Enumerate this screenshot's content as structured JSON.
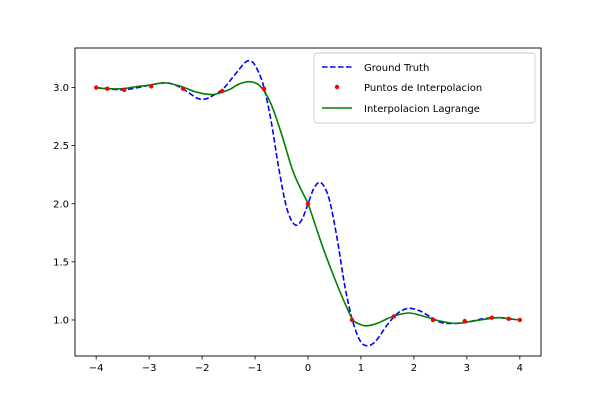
{
  "chart_data": {
    "type": "line",
    "title": "",
    "xlabel": "",
    "ylabel": "",
    "xlim": [
      -4.4,
      4.4
    ],
    "ylim": [
      0.69,
      3.34
    ],
    "grid": false,
    "legend_placement": "top-right",
    "x_ticks": [
      -4,
      -3,
      -2,
      -1,
      0,
      1,
      2,
      3,
      4
    ],
    "x_tick_labels": [
      "−4",
      "−3",
      "−2",
      "−1",
      "0",
      "1",
      "2",
      "3",
      "4"
    ],
    "y_ticks": [
      1.0,
      1.5,
      2.0,
      2.5,
      3.0
    ],
    "y_tick_labels": [
      "1.0",
      "1.5",
      "2.0",
      "2.5",
      "3.0"
    ],
    "series": [
      {
        "name": "Ground Truth",
        "style": "dashed",
        "color": "#0000ff",
        "points": [
          [
            -4.0,
            3.0
          ],
          [
            -3.8,
            2.99
          ],
          [
            -3.5,
            2.98
          ],
          [
            -3.2,
            3.0
          ],
          [
            -3.0,
            3.02
          ],
          [
            -2.7,
            3.04
          ],
          [
            -2.5,
            3.02
          ],
          [
            -2.3,
            2.97
          ],
          [
            -2.1,
            2.91
          ],
          [
            -1.95,
            2.9
          ],
          [
            -1.8,
            2.93
          ],
          [
            -1.6,
            2.99
          ],
          [
            -1.4,
            3.1
          ],
          [
            -1.2,
            3.21
          ],
          [
            -1.1,
            3.23
          ],
          [
            -1.0,
            3.19
          ],
          [
            -0.85,
            3.03
          ],
          [
            -0.7,
            2.72
          ],
          [
            -0.55,
            2.3
          ],
          [
            -0.4,
            1.96
          ],
          [
            -0.25,
            1.82
          ],
          [
            -0.12,
            1.86
          ],
          [
            0.0,
            2.0
          ],
          [
            0.12,
            2.14
          ],
          [
            0.25,
            2.18
          ],
          [
            0.4,
            2.04
          ],
          [
            0.55,
            1.7
          ],
          [
            0.7,
            1.28
          ],
          [
            0.85,
            0.98
          ],
          [
            1.0,
            0.81
          ],
          [
            1.15,
            0.78
          ],
          [
            1.3,
            0.83
          ],
          [
            1.5,
            0.96
          ],
          [
            1.7,
            1.06
          ],
          [
            1.9,
            1.1
          ],
          [
            2.1,
            1.08
          ],
          [
            2.3,
            1.03
          ],
          [
            2.5,
            0.98
          ],
          [
            2.7,
            0.97
          ],
          [
            3.0,
            0.98
          ],
          [
            3.3,
            1.01
          ],
          [
            3.6,
            1.02
          ],
          [
            3.8,
            1.01
          ],
          [
            4.0,
            1.0
          ]
        ]
      },
      {
        "name": "Puntos de Interpolacion",
        "style": "markers",
        "color": "#ff0000",
        "points": [
          [
            -4.0,
            3.0
          ],
          [
            -3.79,
            2.99
          ],
          [
            -3.47,
            2.98
          ],
          [
            -2.96,
            3.01
          ],
          [
            -2.36,
            2.99
          ],
          [
            -1.62,
            2.97
          ],
          [
            -0.83,
            2.99
          ],
          [
            0.0,
            2.0
          ],
          [
            0.83,
            1.0
          ],
          [
            1.62,
            1.03
          ],
          [
            2.36,
            1.0
          ],
          [
            2.96,
            0.99
          ],
          [
            3.47,
            1.02
          ],
          [
            3.79,
            1.01
          ],
          [
            4.0,
            1.0
          ]
        ]
      },
      {
        "name": "Interpolacion Lagrange",
        "style": "solid",
        "color": "#008000",
        "points": [
          [
            -4.0,
            3.0
          ],
          [
            -3.8,
            2.99
          ],
          [
            -3.5,
            2.99
          ],
          [
            -3.2,
            3.01
          ],
          [
            -3.0,
            3.02
          ],
          [
            -2.7,
            3.04
          ],
          [
            -2.4,
            3.01
          ],
          [
            -2.1,
            2.96
          ],
          [
            -1.8,
            2.94
          ],
          [
            -1.5,
            2.98
          ],
          [
            -1.3,
            3.03
          ],
          [
            -1.1,
            3.05
          ],
          [
            -0.9,
            3.01
          ],
          [
            -0.7,
            2.86
          ],
          [
            -0.5,
            2.6
          ],
          [
            -0.3,
            2.3
          ],
          [
            -0.15,
            2.14
          ],
          [
            0.0,
            2.0
          ],
          [
            0.15,
            1.8
          ],
          [
            0.3,
            1.6
          ],
          [
            0.5,
            1.36
          ],
          [
            0.7,
            1.14
          ],
          [
            0.85,
            1.0
          ],
          [
            1.0,
            0.96
          ],
          [
            1.1,
            0.95
          ],
          [
            1.3,
            0.97
          ],
          [
            1.6,
            1.03
          ],
          [
            1.9,
            1.06
          ],
          [
            2.2,
            1.03
          ],
          [
            2.5,
            0.99
          ],
          [
            2.8,
            0.97
          ],
          [
            3.1,
            0.99
          ],
          [
            3.4,
            1.01
          ],
          [
            3.6,
            1.02
          ],
          [
            3.8,
            1.01
          ],
          [
            4.0,
            1.0
          ]
        ]
      }
    ]
  }
}
